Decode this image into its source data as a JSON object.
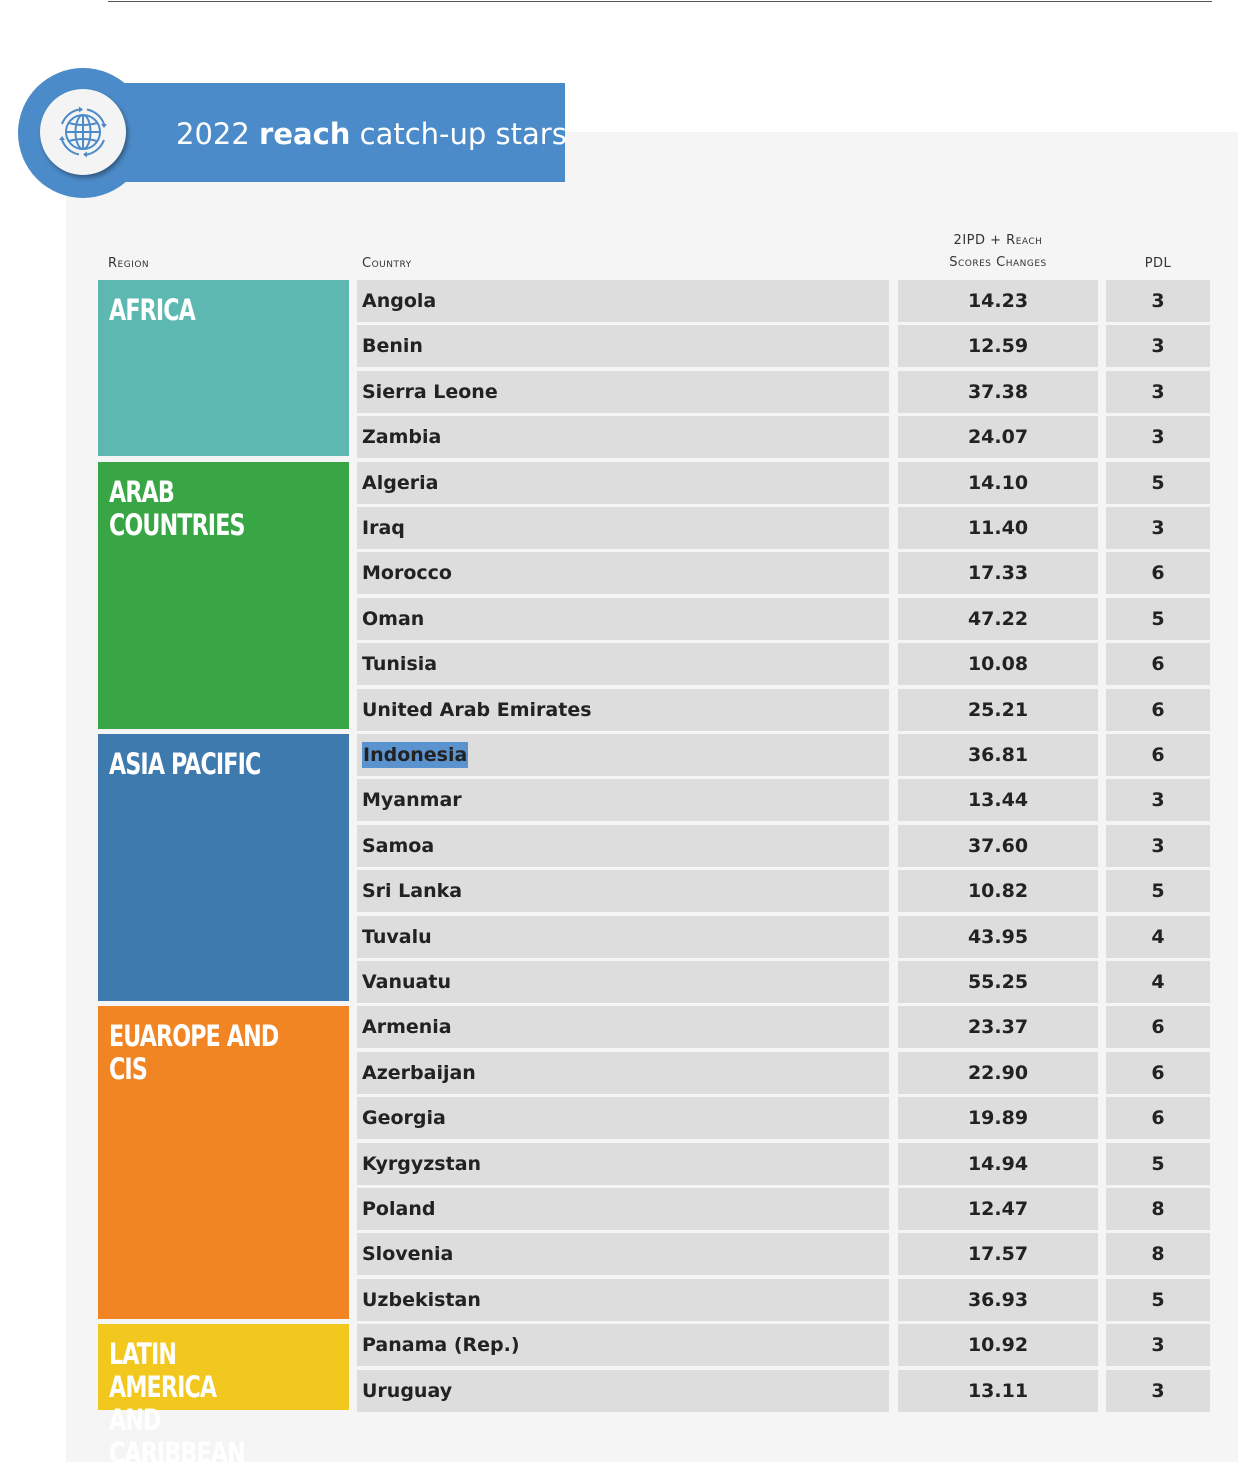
{
  "title": {
    "year": "2022",
    "bold_word": "reach",
    "rest": "catch-up stars",
    "icon": "globe-icon"
  },
  "headers": {
    "region": "Region",
    "country": "Country",
    "change_line1": "2IPD + Reach",
    "change_line2": "Scores Changes",
    "pdl": "PDL"
  },
  "colors": {
    "africa": "#5db8b2",
    "arab_countries": "#39a646",
    "asia_pacific": "#3e7aae",
    "europe_cis": "#f28523",
    "latin_america": "#f2c81f",
    "title_blue": "#4c8bc9",
    "row_gray": "#dedddd"
  },
  "regions": [
    {
      "label": "AFRICA",
      "color": "#5db8b2",
      "rows": [
        {
          "country": "Angola",
          "change": "14.23",
          "pdl": "3"
        },
        {
          "country": "Benin",
          "change": "12.59",
          "pdl": "3"
        },
        {
          "country": "Sierra Leone",
          "change": "37.38",
          "pdl": "3"
        },
        {
          "country": "Zambia",
          "change": "24.07",
          "pdl": "3"
        }
      ]
    },
    {
      "label": "ARAB COUNTRIES",
      "color": "#39a646",
      "rows": [
        {
          "country": "Algeria",
          "change": "14.10",
          "pdl": "5"
        },
        {
          "country": "Iraq",
          "change": "11.40",
          "pdl": "3"
        },
        {
          "country": "Morocco",
          "change": "17.33",
          "pdl": "6"
        },
        {
          "country": "Oman",
          "change": "47.22",
          "pdl": "5"
        },
        {
          "country": "Tunisia",
          "change": "10.08",
          "pdl": "6"
        },
        {
          "country": "United Arab Emirates",
          "change": "25.21",
          "pdl": "6"
        }
      ]
    },
    {
      "label": "ASIA PACIFIC",
      "color": "#3e7aae",
      "rows": [
        {
          "country": "Indonesia",
          "change": "36.81",
          "pdl": "6",
          "selected": true
        },
        {
          "country": "Myanmar",
          "change": "13.44",
          "pdl": "3"
        },
        {
          "country": "Samoa",
          "change": "37.60",
          "pdl": "3"
        },
        {
          "country": "Sri Lanka",
          "change": "10.82",
          "pdl": "5"
        },
        {
          "country": "Tuvalu",
          "change": "43.95",
          "pdl": "4"
        },
        {
          "country": "Vanuatu",
          "change": "55.25",
          "pdl": "4"
        }
      ]
    },
    {
      "label": "EUAROPE AND\nCIS",
      "color": "#f28523",
      "rows": [
        {
          "country": "Armenia",
          "change": "23.37",
          "pdl": "6"
        },
        {
          "country": "Azerbaijan",
          "change": "22.90",
          "pdl": "6"
        },
        {
          "country": "Georgia",
          "change": "19.89",
          "pdl": "6"
        },
        {
          "country": "Kyrgyzstan",
          "change": "14.94",
          "pdl": "5"
        },
        {
          "country": "Poland",
          "change": "12.47",
          "pdl": "8"
        },
        {
          "country": "Slovenia",
          "change": "17.57",
          "pdl": "8"
        },
        {
          "country": "Uzbekistan",
          "change": "36.93",
          "pdl": "5"
        }
      ]
    },
    {
      "label": "LATIN AMERICA\nAND CARIBBEAN",
      "color": "#f2c81f",
      "rows": [
        {
          "country": "Panama (Rep.)",
          "change": "10.92",
          "pdl": "3"
        },
        {
          "country": "Uruguay",
          "change": "13.11",
          "pdl": "3"
        }
      ]
    }
  ]
}
